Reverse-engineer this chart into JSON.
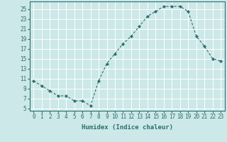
{
  "title": "",
  "xlabel": "Humidex (Indice chaleur)",
  "ylabel": "",
  "x_values": [
    0,
    1,
    2,
    3,
    4,
    5,
    6,
    7,
    8,
    9,
    10,
    11,
    12,
    13,
    14,
    15,
    16,
    17,
    18,
    19,
    20,
    21,
    22,
    23
  ],
  "y_values": [
    10.5,
    9.5,
    8.5,
    7.5,
    7.5,
    6.5,
    6.5,
    5.5,
    10.5,
    14.0,
    16.0,
    18.0,
    19.5,
    21.5,
    23.5,
    24.5,
    25.5,
    25.5,
    25.5,
    24.5,
    19.5,
    17.5,
    15.0,
    14.5
  ],
  "xlim": [
    -0.5,
    23.5
  ],
  "ylim": [
    4.5,
    26.5
  ],
  "yticks": [
    5,
    7,
    9,
    11,
    13,
    15,
    17,
    19,
    21,
    23,
    25
  ],
  "xticks": [
    0,
    1,
    2,
    3,
    4,
    5,
    6,
    7,
    8,
    9,
    10,
    11,
    12,
    13,
    14,
    15,
    16,
    17,
    18,
    19,
    20,
    21,
    22,
    23
  ],
  "line_color": "#2d6e6e",
  "marker_color": "#2d6e6e",
  "bg_color": "#cce8e8",
  "grid_color": "#ffffff",
  "xlabel_fontsize": 6.5,
  "tick_fontsize": 5.5
}
